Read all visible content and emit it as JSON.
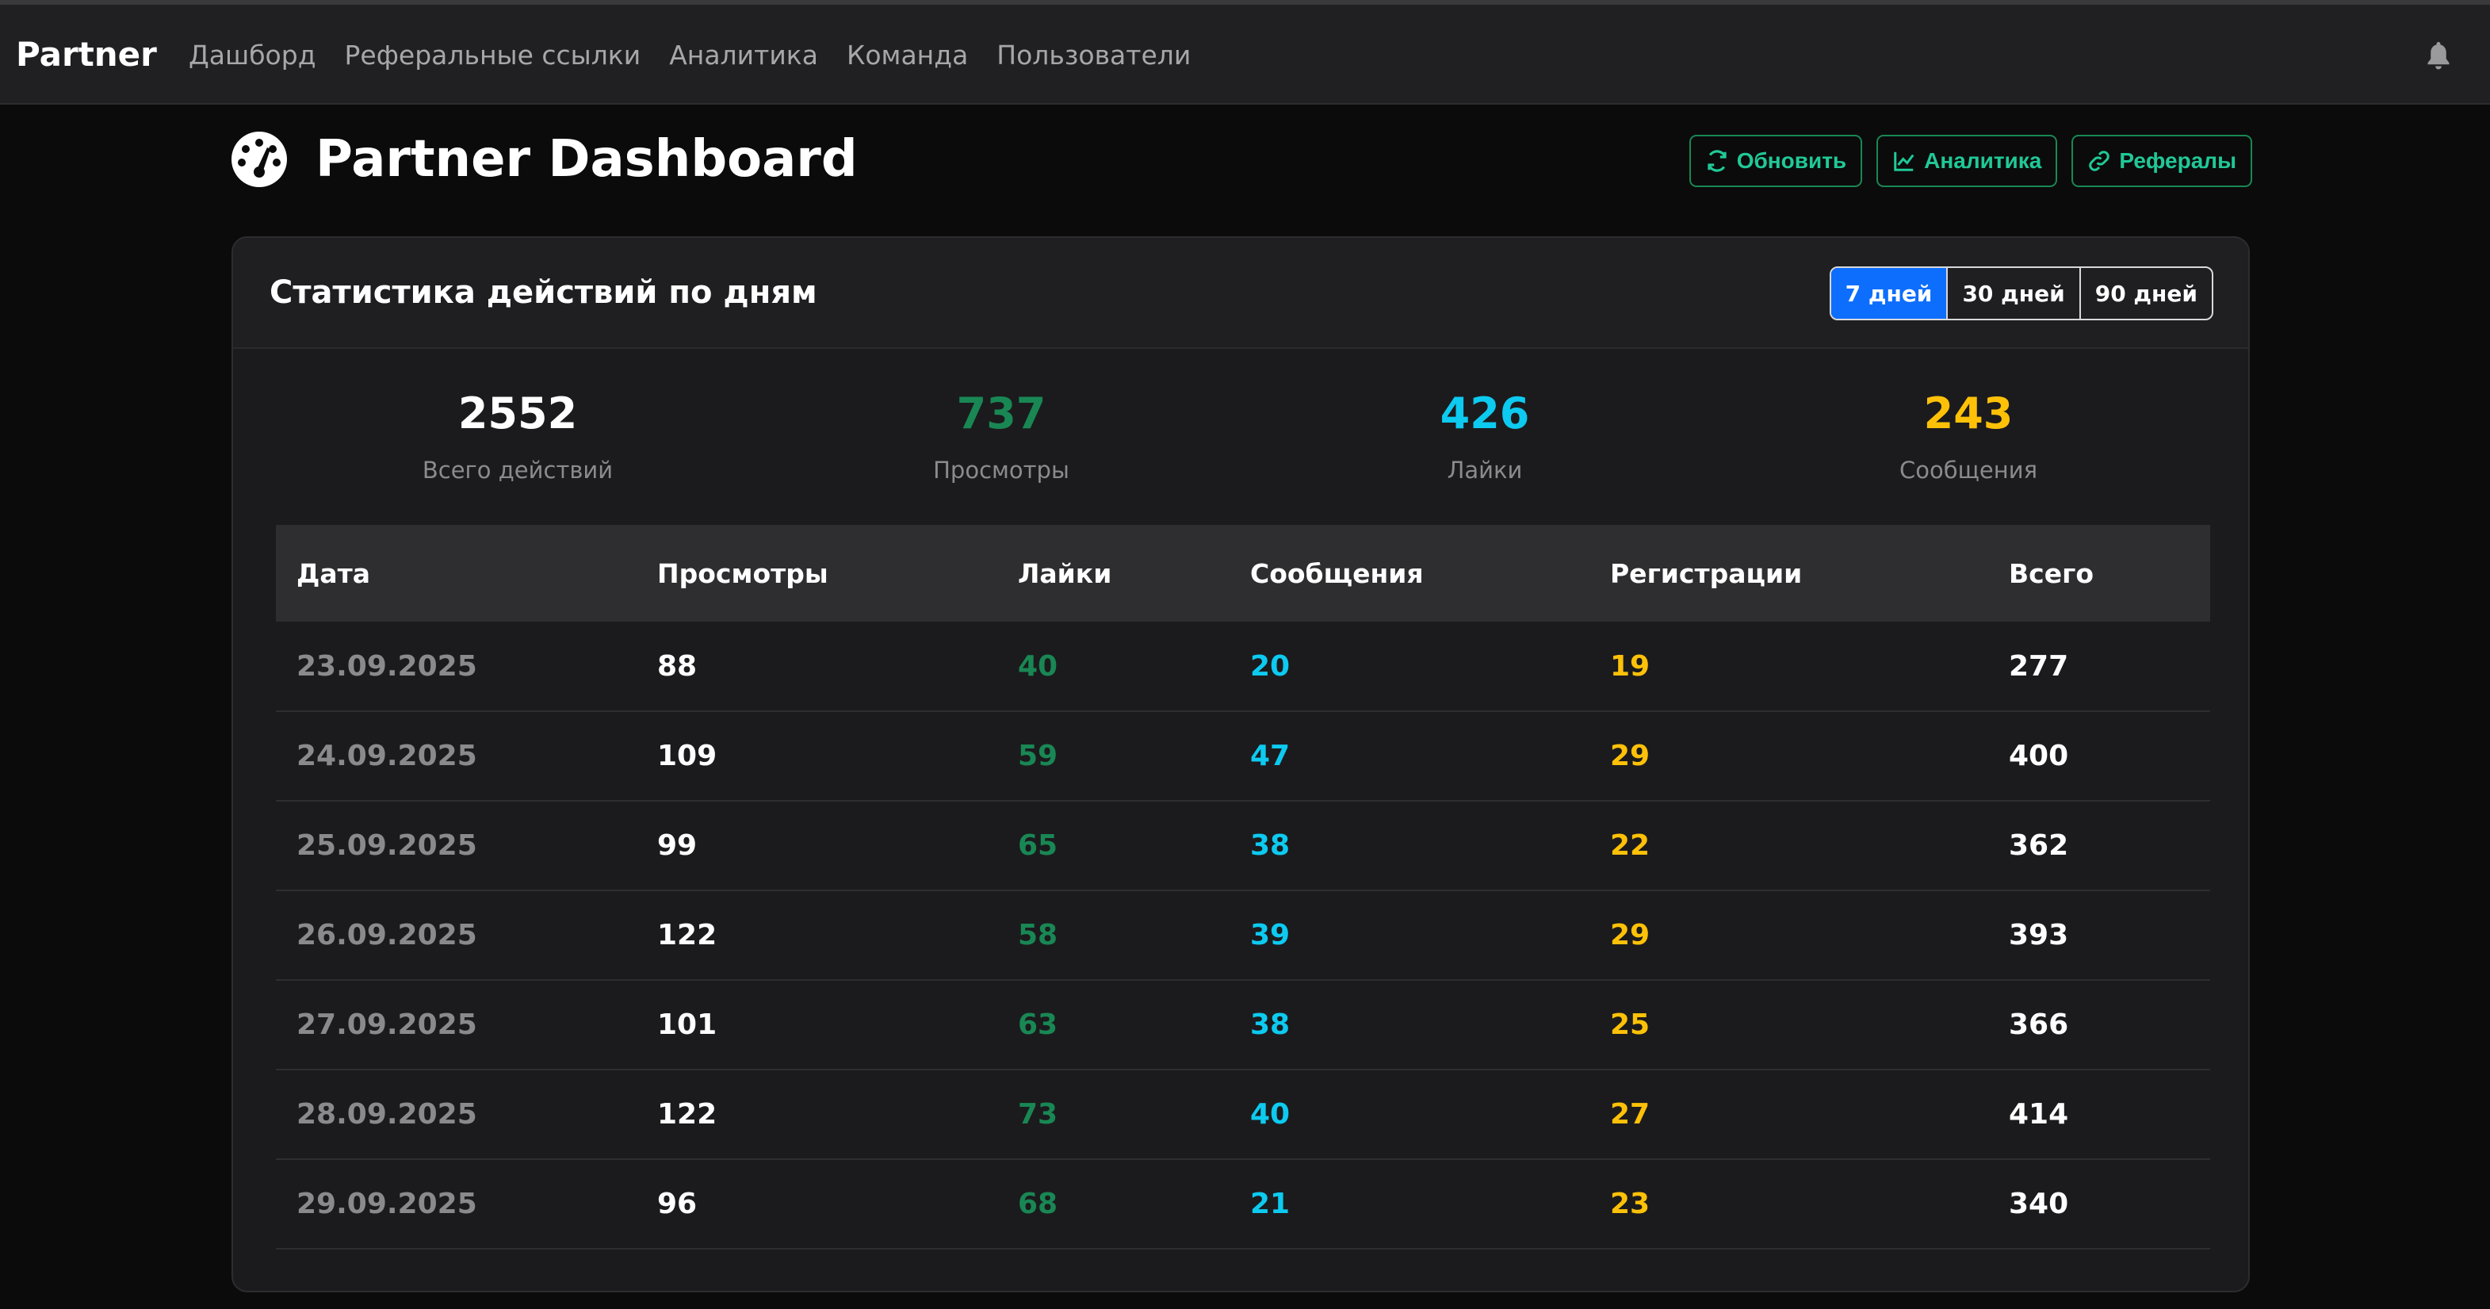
{
  "navbar": {
    "brand": "Partner",
    "items": [
      {
        "label": "Дашборд"
      },
      {
        "label": "Реферальные ссылки"
      },
      {
        "label": "Аналитика"
      },
      {
        "label": "Команда"
      },
      {
        "label": "Пользователи"
      }
    ],
    "notification_icon": "bell-icon"
  },
  "header": {
    "icon": "gauge-icon",
    "title": "Partner Dashboard",
    "actions": [
      {
        "label": "Обновить",
        "icon": "refresh-icon"
      },
      {
        "label": "Аналитика",
        "icon": "line-chart-icon"
      },
      {
        "label": "Рефералы",
        "icon": "link-icon"
      }
    ]
  },
  "card": {
    "title": "Статистика действий по дням",
    "periods": [
      {
        "label": "7 дней",
        "active": true
      },
      {
        "label": "30 дней",
        "active": false
      },
      {
        "label": "90 дней",
        "active": false
      }
    ],
    "summary": [
      {
        "value": "2552",
        "label": "Всего действий",
        "color": "#ffffff"
      },
      {
        "value": "737",
        "label": "Просмотры",
        "color": "#198754"
      },
      {
        "value": "426",
        "label": "Лайки",
        "color": "#0dcaf0"
      },
      {
        "value": "243",
        "label": "Сообщения",
        "color": "#ffc107"
      }
    ],
    "table": {
      "columns": [
        "Дата",
        "Просмотры",
        "Лайки",
        "Сообщения",
        "Регистрации",
        "Всего"
      ],
      "rows": [
        [
          "23.09.2025",
          "88",
          "40",
          "20",
          "19",
          "277"
        ],
        [
          "24.09.2025",
          "109",
          "59",
          "47",
          "29",
          "400"
        ],
        [
          "25.09.2025",
          "99",
          "65",
          "38",
          "22",
          "362"
        ],
        [
          "26.09.2025",
          "122",
          "58",
          "39",
          "29",
          "393"
        ],
        [
          "27.09.2025",
          "101",
          "63",
          "38",
          "25",
          "366"
        ],
        [
          "28.09.2025",
          "122",
          "73",
          "40",
          "27",
          "414"
        ],
        [
          "29.09.2025",
          "96",
          "68",
          "21",
          "23",
          "340"
        ]
      ]
    }
  },
  "colors": {
    "accent_blue": "#0d6efd",
    "success": "#198754",
    "info": "#0dcaf0",
    "warning": "#ffc107"
  }
}
